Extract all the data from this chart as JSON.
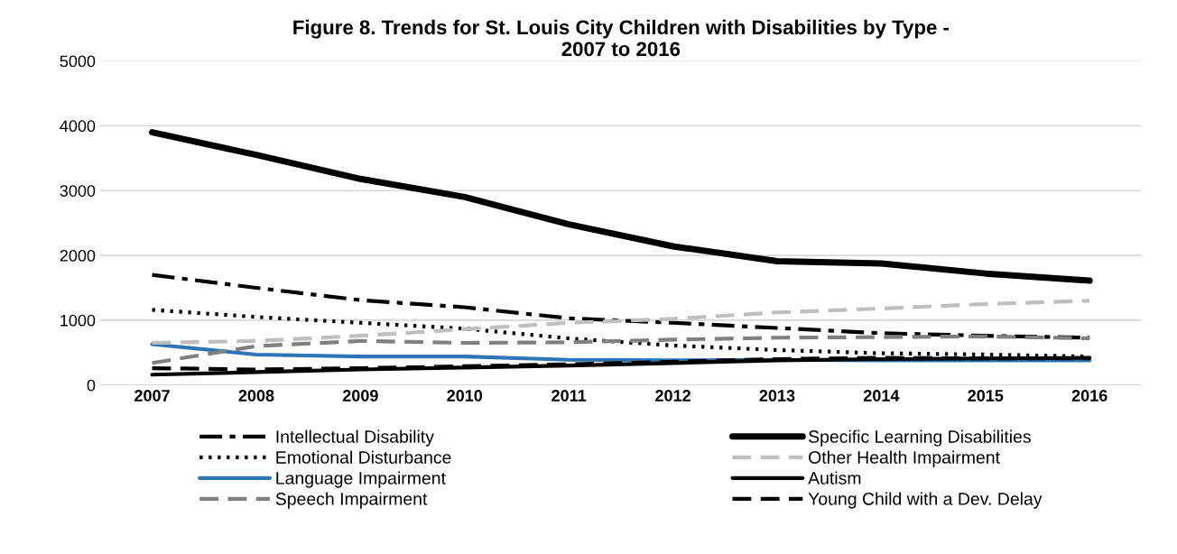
{
  "chart_data": {
    "type": "line",
    "title": "Figure 8. Trends for St. Louis City Children with Disabilities by Type -\n2007 to 2016",
    "categories": [
      "2007",
      "2008",
      "2009",
      "2010",
      "2011",
      "2012",
      "2013",
      "2014",
      "2015",
      "2016"
    ],
    "ylim": [
      0,
      5000
    ],
    "yticks": [
      0,
      1000,
      2000,
      3000,
      4000,
      5000
    ],
    "grid": "y",
    "legend": "bottom",
    "marker": "none",
    "series": [
      {
        "name": "Intellectual Disability",
        "color": "#000000",
        "line_style": "dashdot",
        "values": [
          1700,
          1500,
          1310,
          1200,
          1030,
          960,
          880,
          800,
          760,
          730
        ]
      },
      {
        "name": "Emotional Disturbance",
        "color": "#000000",
        "line_style": "dotted",
        "values": [
          1160,
          1050,
          960,
          870,
          720,
          610,
          540,
          490,
          470,
          440
        ]
      },
      {
        "name": "Language Impairment",
        "color": "#2e75b6",
        "line_style": "solid",
        "values": [
          630,
          470,
          440,
          440,
          390,
          380,
          390,
          380,
          380,
          380
        ]
      },
      {
        "name": "Speech Impairment",
        "color": "#808080",
        "line_style": "dashed",
        "values": [
          340,
          600,
          680,
          650,
          660,
          700,
          730,
          740,
          750,
          720
        ]
      },
      {
        "name": "Specific Learning Disabilities",
        "color": "#000000",
        "line_style": "solid",
        "values": [
          3900,
          3550,
          3180,
          2900,
          2480,
          2140,
          1910,
          1875,
          1720,
          1610
        ]
      },
      {
        "name": "Other Health Impairment",
        "color": "#bfbfbf",
        "line_style": "dashed",
        "values": [
          650,
          680,
          760,
          860,
          960,
          1020,
          1120,
          1180,
          1250,
          1300
        ]
      },
      {
        "name": "Autism",
        "color": "#000000",
        "line_style": "solid",
        "values": [
          160,
          200,
          240,
          270,
          300,
          340,
          380,
          400,
          410,
          420
        ]
      },
      {
        "name": "Young Child with a Dev. Delay",
        "color": "#000000",
        "line_style": "dashed",
        "values": [
          260,
          240,
          260,
          290,
          320,
          360,
          400,
          420,
          410,
          410
        ]
      }
    ]
  }
}
